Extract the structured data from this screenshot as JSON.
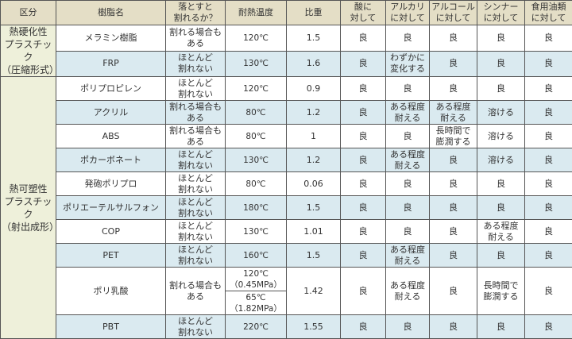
{
  "headers": [
    "区分",
    "樹脂名",
    "落とすと\n割れるか？",
    "耐熱温度",
    "比重",
    "酸に\n対して",
    "アルカリ\nに対して",
    "アルコール\nに対して",
    "シンナー\nに対して",
    "食用油類\nに対して"
  ],
  "groups": [
    {
      "category": "熱硬化性\nプラスチック\n（圧縮形式）",
      "rows": [
        {
          "name": "メラミン樹脂",
          "drop": "割れる場合も\nある",
          "heat": [
            "120℃"
          ],
          "gravity": "1.5",
          "acid": "良",
          "alkali": "良",
          "alcohol": "良",
          "thinner": "良",
          "oil": "良"
        },
        {
          "name": "FRP",
          "drop": "ほとんど\n割れない",
          "heat": [
            "130℃"
          ],
          "gravity": "1.6",
          "acid": "良",
          "alkali": "わずかに\n変化する",
          "alcohol": "良",
          "thinner": "良",
          "oil": "良"
        }
      ]
    },
    {
      "category": "熱可塑性\nプラスチック\n（射出成形）",
      "rows": [
        {
          "name": "ポリプロピレン",
          "drop": "ほとんど\n割れない",
          "heat": [
            "120℃"
          ],
          "gravity": "0.9",
          "acid": "良",
          "alkali": "良",
          "alcohol": "良",
          "thinner": "良",
          "oil": "良"
        },
        {
          "name": "アクリル",
          "drop": "割れる場合も\nある",
          "heat": [
            "80℃"
          ],
          "gravity": "1.2",
          "acid": "良",
          "alkali": "ある程度\n耐える",
          "alcohol": "ある程度\n耐える",
          "thinner": "溶ける",
          "oil": "良"
        },
        {
          "name": "ABS",
          "drop": "割れる場合も\nある",
          "heat": [
            "80℃"
          ],
          "gravity": "1",
          "acid": "良",
          "alkali": "良",
          "alcohol": "長時間で\n膨潤する",
          "thinner": "溶ける",
          "oil": "良"
        },
        {
          "name": "ポカーボネート",
          "drop": "ほとんど\n割れない",
          "heat": [
            "130℃"
          ],
          "gravity": "1.2",
          "acid": "良",
          "alkali": "ある程度\n耐える",
          "alcohol": "良",
          "thinner": "溶ける",
          "oil": "良"
        },
        {
          "name": "発砲ポリプロ",
          "drop": "ほとんど\n割れない",
          "heat": [
            "80℃"
          ],
          "gravity": "0.06",
          "acid": "良",
          "alkali": "良",
          "alcohol": "良",
          "thinner": "良",
          "oil": "良"
        },
        {
          "name": "ポリエーテルサルフォン",
          "drop": "ほとんど\n割れない",
          "heat": [
            "180℃"
          ],
          "gravity": "1.5",
          "acid": "良",
          "alkali": "良",
          "alcohol": "良",
          "thinner": "良",
          "oil": "良"
        },
        {
          "name": "COP",
          "drop": "ほとんど\n割れない",
          "heat": [
            "130℃"
          ],
          "gravity": "1.01",
          "acid": "良",
          "alkali": "良",
          "alcohol": "良",
          "thinner": "ある程度\n耐える",
          "oil": "良"
        },
        {
          "name": "PET",
          "drop": "ほとんど\n割れない",
          "heat": [
            "160℃"
          ],
          "gravity": "1.5",
          "acid": "良",
          "alkali": "ある程度\n耐える",
          "alcohol": "良",
          "thinner": "良",
          "oil": "良"
        },
        {
          "name": "ポリ乳酸",
          "drop": "割れる場合も\nある",
          "heat": [
            "120℃\n（0.45MPa）",
            "65℃\n（1.82MPa）"
          ],
          "gravity": "1.42",
          "acid": "良",
          "alkali": "ある程度\n耐える",
          "alcohol": "良",
          "thinner": "長時間で\n膨潤する",
          "oil": "良"
        },
        {
          "name": "PBT",
          "drop": "ほとんど\n割れない",
          "heat": [
            "220℃"
          ],
          "gravity": "1.55",
          "acid": "良",
          "alkali": "良",
          "alcohol": "良",
          "thinner": "良",
          "oil": "良"
        }
      ]
    }
  ],
  "colors": {
    "header": "#e4dec6",
    "category": "#eef0da",
    "row_alt": "#daeaf0",
    "border": "#555555"
  }
}
